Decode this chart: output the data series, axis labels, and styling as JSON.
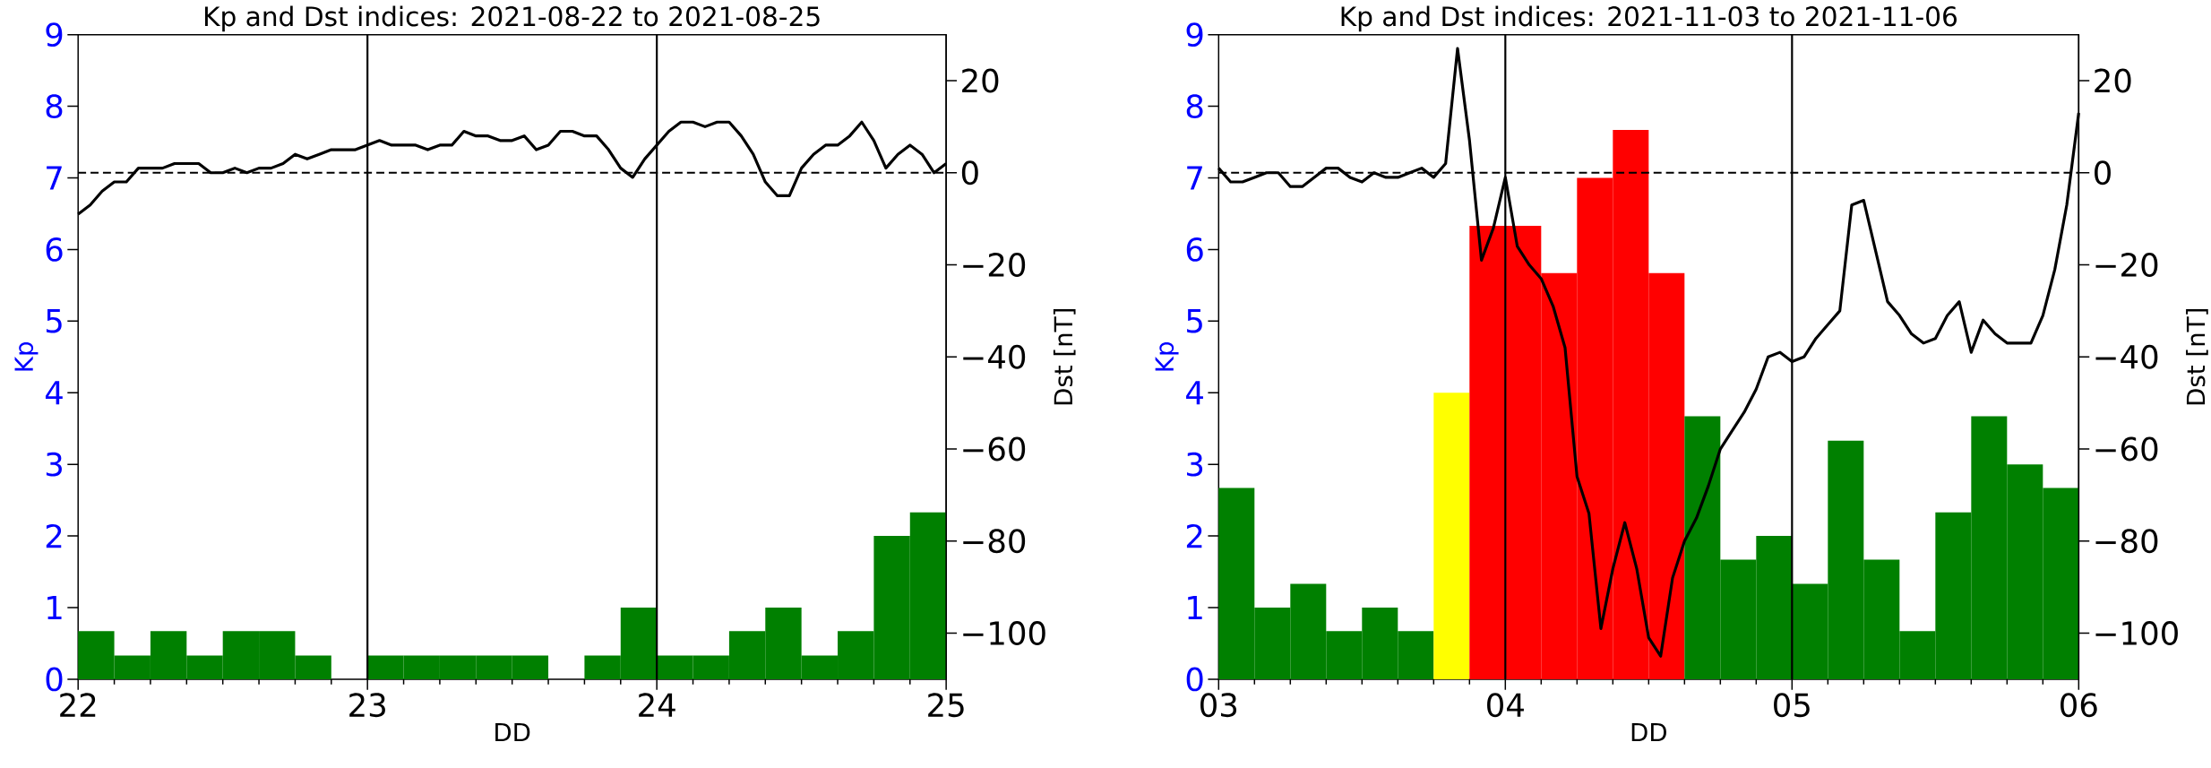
{
  "chart_data": [
    {
      "type": "bar",
      "title": "Kp and Dst indices: 2021-08-22 to 2021-08-25",
      "xlabel": "DD",
      "ylabel": "Kp",
      "y2label": "Dst [nT]",
      "xlim": [
        22,
        25
      ],
      "xticks": [
        22,
        {
          "value": 22.125,
          "label": null
        },
        {
          "value": 22.25,
          "label": null
        },
        {
          "value": 22.375,
          "label": null
        },
        {
          "value": 22.5,
          "label": null
        },
        {
          "value": 22.625,
          "label": null
        },
        {
          "value": 22.75,
          "label": null
        },
        {
          "value": 22.875,
          "label": null
        },
        23,
        {
          "value": 23.125,
          "label": null
        },
        {
          "value": 23.25,
          "label": null
        },
        {
          "value": 23.375,
          "label": null
        },
        {
          "value": 23.5,
          "label": null
        },
        {
          "value": 23.625,
          "label": null
        },
        {
          "value": 23.75,
          "label": null
        },
        {
          "value": 23.875,
          "label": null
        },
        24,
        {
          "value": 24.125,
          "label": null
        },
        {
          "value": 24.25,
          "label": null
        },
        {
          "value": 24.375,
          "label": null
        },
        {
          "value": 24.5,
          "label": null
        },
        {
          "value": 24.625,
          "label": null
        },
        {
          "value": 24.75,
          "label": null
        },
        {
          "value": 24.875,
          "label": null
        },
        25
      ],
      "ylim": [
        0,
        9
      ],
      "yticks": [
        0,
        1,
        2,
        3,
        4,
        5,
        6,
        7,
        8,
        9
      ],
      "y2lim": [
        -110,
        30
      ],
      "y2ticks": [
        {
          "value": -100,
          "label": "−100"
        },
        {
          "value": -80,
          "label": "−80"
        },
        {
          "value": -60,
          "label": "−60"
        },
        {
          "value": -40,
          "label": "−40"
        },
        {
          "value": -20,
          "label": "−20"
        },
        0,
        20
      ],
      "series": [
        {
          "color": "#008000",
          "x": [
            22.0625,
            22.1875,
            22.3125,
            22.4375,
            22.5625,
            22.6875,
            22.8125,
            22.9375,
            23.0625,
            23.1875,
            23.3125,
            23.4375,
            23.5625,
            23.6875,
            23.8125,
            23.9375,
            24.0625,
            24.1875,
            24.3125,
            24.4375,
            24.5625,
            24.6875,
            24.8125,
            24.9375
          ],
          "values": [
            0.67,
            0.33,
            0.67,
            0.33,
            0.67,
            0.67,
            0.33,
            0,
            0.33,
            0.33,
            0.33,
            0.33,
            0.33,
            0,
            0.33,
            1,
            0.33,
            0.33,
            0.67,
            1,
            0.33,
            0.67,
            2,
            2.33
          ]
        },
        {
          "type": "line",
          "axis": "y2",
          "color": "#000000",
          "x": [
            22,
            22.0417,
            22.0833,
            22.125,
            22.1667,
            22.2083,
            22.25,
            22.2917,
            22.3333,
            22.375,
            22.4167,
            22.4583,
            22.5,
            22.5417,
            22.5833,
            22.625,
            22.6667,
            22.7083,
            22.75,
            22.7917,
            22.8333,
            22.875,
            22.9167,
            22.9583,
            23,
            23.0417,
            23.0833,
            23.125,
            23.1667,
            23.2083,
            23.25,
            23.2917,
            23.3333,
            23.375,
            23.4167,
            23.4583,
            23.5,
            23.5417,
            23.5833,
            23.625,
            23.6667,
            23.7083,
            23.75,
            23.7917,
            23.8333,
            23.875,
            23.9167,
            23.9583,
            24,
            24.0417,
            24.0833,
            24.125,
            24.1667,
            24.2083,
            24.25,
            24.2917,
            24.3333,
            24.375,
            24.4167,
            24.4583,
            24.5,
            24.5417,
            24.5833,
            24.625,
            24.6667,
            24.7083,
            24.75,
            24.7917,
            24.8333,
            24.875,
            24.9167,
            24.9583,
            25
          ],
          "values": [
            -9,
            -7,
            -4,
            -2,
            -2,
            1,
            1,
            1,
            2,
            2,
            2,
            0,
            0,
            1,
            0,
            1,
            1,
            2,
            4,
            3,
            4,
            5,
            5,
            5,
            6,
            7,
            6,
            6,
            6,
            5,
            6,
            6,
            9,
            8,
            8,
            7,
            7,
            8,
            5,
            6,
            9,
            9,
            8,
            8,
            5,
            1,
            -1,
            3,
            6,
            9,
            11,
            11,
            10,
            11,
            11,
            8,
            4,
            -2,
            -5,
            -5,
            1,
            4,
            6,
            6,
            8,
            11,
            7,
            1,
            4,
            6,
            4,
            0,
            2
          ]
        }
      ],
      "ref_lines": [
        {
          "axis": "x",
          "value": 23,
          "color": "#000000",
          "line_style": "solid"
        },
        {
          "axis": "x",
          "value": 24,
          "color": "#000000",
          "line_style": "solid"
        },
        {
          "axis": "y2",
          "value": 0,
          "color": "#000000",
          "line_style": "dashed"
        }
      ]
    },
    {
      "type": "bar",
      "title": "Kp and Dst indices: 2021-11-03 to 2021-11-06",
      "xlabel": "DD",
      "ylabel": "Kp",
      "y2label": "Dst [nT]",
      "xlim": [
        3,
        6
      ],
      "xticks": [
        {
          "value": 3,
          "label": "03"
        },
        {
          "value": 3.125,
          "label": null
        },
        {
          "value": 3.25,
          "label": null
        },
        {
          "value": 3.375,
          "label": null
        },
        {
          "value": 3.5,
          "label": null
        },
        {
          "value": 3.625,
          "label": null
        },
        {
          "value": 3.75,
          "label": null
        },
        {
          "value": 3.875,
          "label": null
        },
        {
          "value": 4,
          "label": "04"
        },
        {
          "value": 4.125,
          "label": null
        },
        {
          "value": 4.25,
          "label": null
        },
        {
          "value": 4.375,
          "label": null
        },
        {
          "value": 4.5,
          "label": null
        },
        {
          "value": 4.625,
          "label": null
        },
        {
          "value": 4.75,
          "label": null
        },
        {
          "value": 4.875,
          "label": null
        },
        {
          "value": 5,
          "label": "05"
        },
        {
          "value": 5.125,
          "label": null
        },
        {
          "value": 5.25,
          "label": null
        },
        {
          "value": 5.375,
          "label": null
        },
        {
          "value": 5.5,
          "label": null
        },
        {
          "value": 5.625,
          "label": null
        },
        {
          "value": 5.75,
          "label": null
        },
        {
          "value": 5.875,
          "label": null
        },
        {
          "value": 6,
          "label": "06"
        }
      ],
      "ylim": [
        0,
        9
      ],
      "yticks": [
        0,
        1,
        2,
        3,
        4,
        5,
        6,
        7,
        8,
        9
      ],
      "y2lim": [
        -110,
        30
      ],
      "y2ticks": [
        {
          "value": -100,
          "label": "−100"
        },
        {
          "value": -80,
          "label": "−80"
        },
        {
          "value": -60,
          "label": "−60"
        },
        {
          "value": -40,
          "label": "−40"
        },
        {
          "value": -20,
          "label": "−20"
        },
        0,
        20
      ],
      "series": [
        {
          "colors": [
            "#008000",
            "#008000",
            "#008000",
            "#008000",
            "#008000",
            "#008000",
            "#ffff00",
            "#ff0000",
            "#ff0000",
            "#ff0000",
            "#ff0000",
            "#ff0000",
            "#ff0000",
            "#008000",
            "#008000",
            "#008000",
            "#008000",
            "#008000",
            "#008000",
            "#008000",
            "#008000",
            "#008000",
            "#008000",
            "#008000"
          ],
          "x": [
            3.0625,
            3.1875,
            3.3125,
            3.4375,
            3.5625,
            3.6875,
            3.8125,
            3.9375,
            4.0625,
            4.1875,
            4.3125,
            4.4375,
            4.5625,
            4.6875,
            4.8125,
            4.9375,
            5.0625,
            5.1875,
            5.3125,
            5.4375,
            5.5625,
            5.6875,
            5.8125,
            5.9375
          ],
          "values": [
            2.67,
            1,
            1.33,
            0.67,
            1,
            0.67,
            4,
            6.33,
            6.33,
            5.67,
            7,
            7.67,
            5.67,
            3.67,
            1.67,
            2,
            1.33,
            3.33,
            1.67,
            0.67,
            2.33,
            3.67,
            3,
            2.67
          ]
        },
        {
          "type": "line",
          "axis": "y2",
          "color": "#000000",
          "x": [
            3,
            3.0417,
            3.0833,
            3.125,
            3.1667,
            3.2083,
            3.25,
            3.2917,
            3.3333,
            3.375,
            3.4167,
            3.4583,
            3.5,
            3.5417,
            3.5833,
            3.625,
            3.6667,
            3.7083,
            3.75,
            3.7917,
            3.8333,
            3.875,
            3.9167,
            3.9583,
            4,
            4.0417,
            4.0833,
            4.125,
            4.1667,
            4.2083,
            4.25,
            4.2917,
            4.3333,
            4.375,
            4.4167,
            4.4583,
            4.5,
            4.5417,
            4.5833,
            4.625,
            4.6667,
            4.7083,
            4.75,
            4.7917,
            4.8333,
            4.875,
            4.9167,
            4.9583,
            5,
            5.0417,
            5.0833,
            5.125,
            5.1667,
            5.2083,
            5.25,
            5.2917,
            5.3333,
            5.375,
            5.4167,
            5.4583,
            5.5,
            5.5417,
            5.5833,
            5.625,
            5.6667,
            5.7083,
            5.75,
            5.7917,
            5.8333,
            5.875,
            5.9167,
            5.9583,
            6
          ],
          "values": [
            1,
            -2,
            -2,
            -1,
            0,
            0,
            -3,
            -3,
            -1,
            1,
            1,
            -1,
            -2,
            0,
            -1,
            -1,
            0,
            1,
            -1,
            2,
            27,
            7,
            -19,
            -12,
            -1,
            -16,
            -20,
            -23,
            -29,
            -38,
            -66,
            -74,
            -99,
            -86,
            -76,
            -86,
            -101,
            -105,
            -88,
            -80,
            -75,
            -68,
            -60,
            -56,
            -52,
            -47,
            -40,
            -39,
            -41,
            -40,
            -36,
            -33,
            -30,
            -7,
            -6,
            -17,
            -28,
            -31,
            -35,
            -37,
            -36,
            -31,
            -28,
            -39,
            -32,
            -35,
            -37,
            -37,
            -37,
            -31,
            -21,
            -7,
            13
          ]
        }
      ],
      "ref_lines": [
        {
          "axis": "x",
          "value": 4,
          "color": "#000000",
          "line_style": "solid"
        },
        {
          "axis": "x",
          "value": 5,
          "color": "#000000",
          "line_style": "solid"
        },
        {
          "axis": "y2",
          "value": 0,
          "color": "#000000",
          "line_style": "dashed"
        }
      ]
    }
  ]
}
